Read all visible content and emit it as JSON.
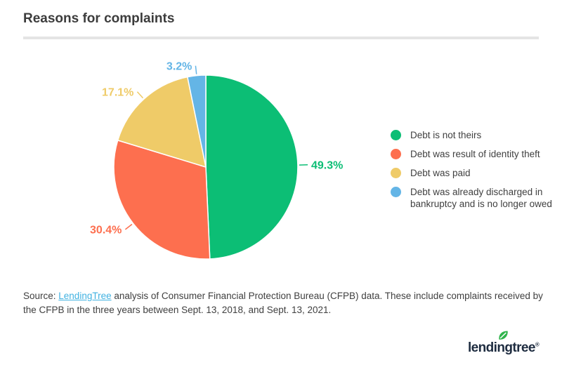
{
  "header": {
    "title": "Reasons for complaints"
  },
  "chart_data": {
    "type": "pie",
    "title": "Reasons for complaints",
    "unit": "%",
    "start_angle_deg": 0,
    "direction": "clockwise",
    "legend_position": "right",
    "slices": [
      {
        "label": "Debt is not theirs",
        "value": 49.3,
        "display_value": "49.3%",
        "color": "#0cbe75"
      },
      {
        "label": "Debt was result of identity theft",
        "value": 30.4,
        "display_value": "30.4%",
        "color": "#fd6f4f"
      },
      {
        "label": "Debt was paid",
        "value": 17.1,
        "display_value": "17.1%",
        "color": "#efcb68"
      },
      {
        "label": "Debt was already discharged in bankruptcy and is no longer owed",
        "value": 3.2,
        "display_value": "3.2%",
        "color": "#64b5e6"
      }
    ]
  },
  "source": {
    "prefix": "Source: ",
    "link_text": "LendingTree",
    "suffix": " analysis of Consumer Financial Protection Bureau (CFPB) data. These include complaints received by the CFPB in the three years between Sept. 13, 2018, and Sept. 13, 2021."
  },
  "logo": {
    "text": "lendingtree",
    "registered_mark": "®"
  },
  "colors": {
    "green": "#0cbe75",
    "orange": "#fd6f4f",
    "yellow": "#efcb68",
    "blue": "#64b5e6",
    "title_text": "#3c3c3c",
    "body_text": "#3f3f3f",
    "link": "#41b2e1",
    "logo_navy": "#1e2c40",
    "divider": "#e4e4e4",
    "leaf_green": "#2fb44b"
  }
}
